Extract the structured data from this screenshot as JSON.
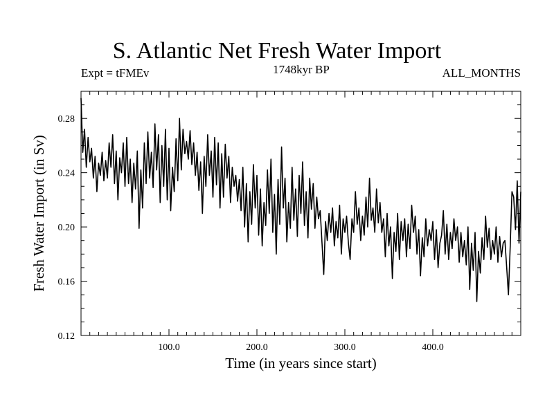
{
  "chart_data": {
    "type": "line",
    "title": "S. Atlantic Net Fresh Water Import",
    "subtitle_left": "Expt = tFMEv",
    "subtitle_center": "1748kyr BP",
    "subtitle_right": "ALL_MONTHS",
    "xlabel": "Time (in years since start)",
    "ylabel": "Fresh Water Import (in Sv)",
    "xlim": [
      0,
      500
    ],
    "ylim": [
      0.12,
      0.3
    ],
    "xticks": [
      100,
      200,
      300,
      400
    ],
    "xtick_labels": [
      "100.0",
      "200.0",
      "300.0",
      "400.0"
    ],
    "yticks": [
      0.12,
      0.16,
      0.2,
      0.24,
      0.28
    ],
    "ytick_labels": [
      "0.12",
      "0.16",
      "0.20",
      "0.24",
      "0.28"
    ],
    "grid": false,
    "series": [
      {
        "name": "Fresh Water Import",
        "note": "values approximated from the plotted trace",
        "x": [
          0,
          2,
          4,
          6,
          8,
          10,
          12,
          14,
          16,
          18,
          20,
          22,
          24,
          26,
          28,
          30,
          32,
          34,
          36,
          38,
          40,
          42,
          44,
          46,
          48,
          50,
          52,
          54,
          56,
          58,
          60,
          62,
          64,
          66,
          68,
          70,
          72,
          74,
          76,
          78,
          80,
          82,
          84,
          86,
          88,
          90,
          92,
          94,
          96,
          98,
          100,
          102,
          104,
          106,
          108,
          110,
          112,
          114,
          116,
          118,
          120,
          122,
          124,
          126,
          128,
          130,
          132,
          134,
          136,
          138,
          140,
          142,
          144,
          146,
          148,
          150,
          152,
          154,
          156,
          158,
          160,
          162,
          164,
          166,
          168,
          170,
          172,
          174,
          176,
          178,
          180,
          182,
          184,
          186,
          188,
          190,
          192,
          194,
          196,
          198,
          200,
          202,
          204,
          206,
          208,
          210,
          212,
          214,
          216,
          218,
          220,
          222,
          224,
          226,
          228,
          230,
          232,
          234,
          236,
          238,
          240,
          242,
          244,
          246,
          248,
          250,
          252,
          254,
          256,
          258,
          260,
          262,
          264,
          266,
          268,
          270,
          272,
          274,
          276,
          278,
          280,
          282,
          284,
          286,
          288,
          290,
          292,
          294,
          296,
          298,
          300,
          302,
          304,
          306,
          308,
          310,
          312,
          314,
          316,
          318,
          320,
          322,
          324,
          326,
          328,
          330,
          332,
          334,
          336,
          338,
          340,
          342,
          344,
          346,
          348,
          350,
          352,
          354,
          356,
          358,
          360,
          362,
          364,
          366,
          368,
          370,
          372,
          374,
          376,
          378,
          380,
          382,
          384,
          386,
          388,
          390,
          392,
          394,
          396,
          398,
          400,
          402,
          404,
          406,
          408,
          410,
          412,
          414,
          416,
          418,
          420,
          422,
          424,
          426,
          428,
          430,
          432,
          434,
          436,
          438,
          440,
          442,
          444,
          446,
          448,
          450,
          452,
          454,
          456,
          458,
          460,
          462,
          464,
          466,
          468,
          470,
          472,
          474,
          476,
          478,
          480,
          482,
          484,
          486,
          488,
          490,
          492,
          494,
          496,
          498,
          500
        ],
        "values": [
          0.295,
          0.255,
          0.272,
          0.244,
          0.266,
          0.248,
          0.258,
          0.236,
          0.252,
          0.226,
          0.247,
          0.238,
          0.255,
          0.234,
          0.249,
          0.236,
          0.262,
          0.244,
          0.268,
          0.232,
          0.256,
          0.22,
          0.251,
          0.24,
          0.262,
          0.23,
          0.266,
          0.232,
          0.25,
          0.218,
          0.247,
          0.228,
          0.256,
          0.199,
          0.242,
          0.214,
          0.262,
          0.232,
          0.27,
          0.236,
          0.255,
          0.229,
          0.276,
          0.242,
          0.268,
          0.218,
          0.26,
          0.23,
          0.272,
          0.22,
          0.258,
          0.212,
          0.244,
          0.226,
          0.265,
          0.234,
          0.28,
          0.242,
          0.272,
          0.254,
          0.263,
          0.25,
          0.271,
          0.246,
          0.262,
          0.238,
          0.255,
          0.227,
          0.248,
          0.21,
          0.252,
          0.23,
          0.268,
          0.238,
          0.256,
          0.222,
          0.266,
          0.231,
          0.262,
          0.214,
          0.254,
          0.222,
          0.261,
          0.236,
          0.252,
          0.218,
          0.244,
          0.23,
          0.238,
          0.219,
          0.235,
          0.212,
          0.244,
          0.2,
          0.232,
          0.189,
          0.226,
          0.202,
          0.246,
          0.214,
          0.238,
          0.194,
          0.228,
          0.186,
          0.218,
          0.201,
          0.242,
          0.21,
          0.25,
          0.196,
          0.224,
          0.18,
          0.235,
          0.202,
          0.259,
          0.214,
          0.236,
          0.189,
          0.218,
          0.199,
          0.244,
          0.205,
          0.228,
          0.193,
          0.238,
          0.21,
          0.248,
          0.201,
          0.226,
          0.192,
          0.236,
          0.213,
          0.232,
          0.199,
          0.222,
          0.206,
          0.212,
          0.188,
          0.165,
          0.204,
          0.19,
          0.21,
          0.196,
          0.214,
          0.186,
          0.204,
          0.192,
          0.216,
          0.18,
          0.206,
          0.196,
          0.208,
          0.188,
          0.176,
          0.206,
          0.196,
          0.226,
          0.202,
          0.214,
          0.19,
          0.208,
          0.194,
          0.222,
          0.2,
          0.236,
          0.205,
          0.214,
          0.196,
          0.228,
          0.203,
          0.218,
          0.196,
          0.206,
          0.178,
          0.21,
          0.186,
          0.2,
          0.162,
          0.196,
          0.182,
          0.21,
          0.176,
          0.204,
          0.19,
          0.206,
          0.178,
          0.202,
          0.184,
          0.216,
          0.196,
          0.208,
          0.18,
          0.198,
          0.164,
          0.192,
          0.178,
          0.206,
          0.186,
          0.198,
          0.19,
          0.204,
          0.176,
          0.198,
          0.17,
          0.188,
          0.194,
          0.212,
          0.18,
          0.202,
          0.176,
          0.196,
          0.184,
          0.206,
          0.19,
          0.2,
          0.174,
          0.196,
          0.178,
          0.19,
          0.172,
          0.2,
          0.154,
          0.188,
          0.168,
          0.196,
          0.145,
          0.182,
          0.166,
          0.192,
          0.176,
          0.208,
          0.185,
          0.199,
          0.176,
          0.19,
          0.18,
          0.2,
          0.174,
          0.193,
          0.178,
          0.188,
          0.19,
          0.17,
          0.15,
          0.186,
          0.226,
          0.222,
          0.198,
          0.234,
          0.188,
          0.226
        ]
      }
    ]
  }
}
